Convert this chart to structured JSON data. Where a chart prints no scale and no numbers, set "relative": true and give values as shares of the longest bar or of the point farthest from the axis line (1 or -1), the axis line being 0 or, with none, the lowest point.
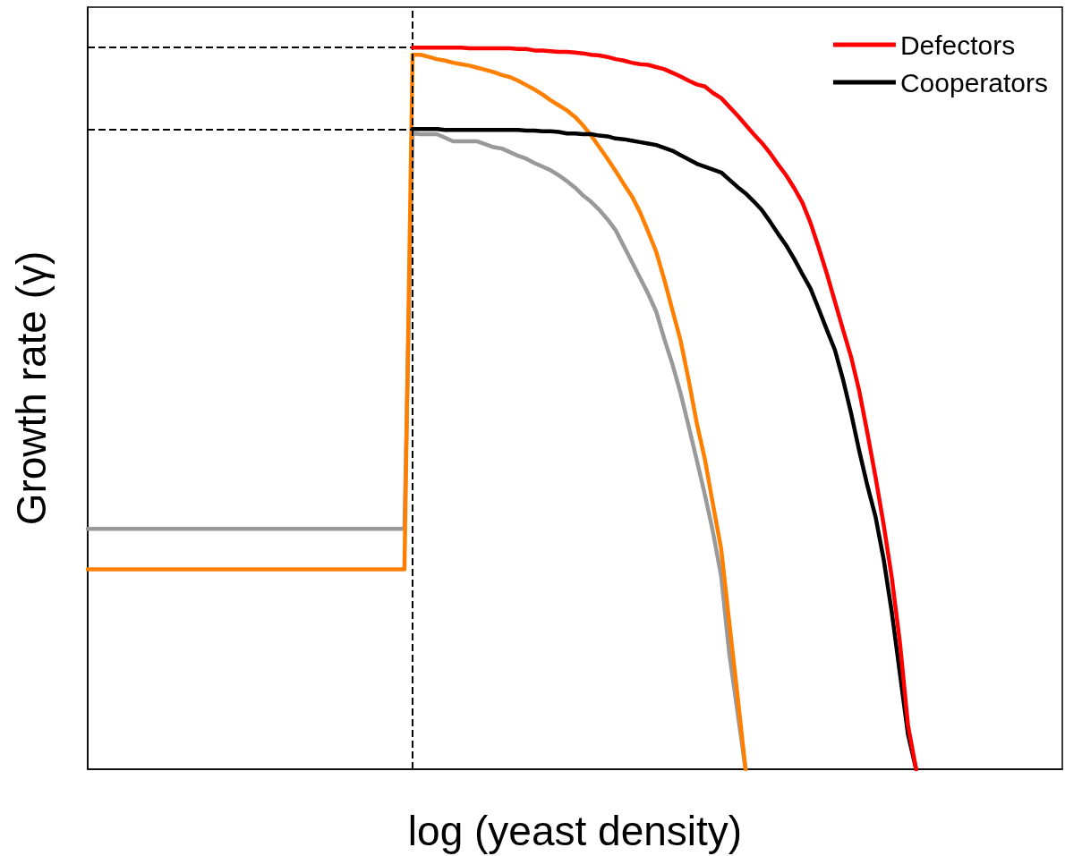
{
  "chart_data": {
    "type": "line",
    "xlabel": "log (yeast density)",
    "ylabel": "Growth rate (γ)",
    "relative": true,
    "grid": false,
    "marker": "none",
    "legend": "top right",
    "categories": [
      null,
      null,
      null,
      null,
      null,
      null,
      null,
      null,
      null,
      null,
      null,
      null,
      null,
      null,
      null,
      null,
      null,
      null,
      null,
      null,
      null,
      null,
      null,
      null,
      null,
      null,
      null,
      null,
      null,
      null,
      null,
      null,
      null,
      null,
      null,
      null,
      null,
      null,
      null,
      null,
      null,
      null,
      null,
      null,
      null,
      null,
      null,
      null,
      null,
      null,
      null,
      null,
      null,
      null,
      null,
      null,
      null,
      null,
      null,
      null,
      null,
      null,
      null,
      null,
      null,
      null,
      null,
      null,
      null,
      null,
      null,
      null,
      null,
      null,
      null,
      null,
      null,
      null,
      null,
      null,
      null,
      null,
      null,
      null,
      null,
      null,
      null,
      null,
      null,
      null,
      null,
      null,
      null,
      null,
      null,
      null,
      null,
      null,
      null,
      null,
      null,
      null,
      null,
      null,
      null,
      null,
      null,
      null,
      null,
      null,
      null,
      null,
      null,
      null,
      null,
      null,
      null,
      null,
      null,
      null,
      null
    ],
    "series": [
      {
        "color": "#999999",
        "values": [
          0.333,
          0.333,
          0.333,
          0.333,
          0.333,
          0.333,
          0.333,
          0.333,
          0.333,
          0.333,
          0.333,
          0.333,
          0.333,
          0.333,
          0.333,
          0.333,
          0.333,
          0.333,
          0.333,
          0.333,
          0.333,
          0.333,
          0.333,
          0.333,
          0.333,
          0.333,
          0.333,
          0.333,
          0.333,
          0.333,
          0.333,
          0.333,
          0.333,
          0.333,
          0.333,
          0.333,
          0.333,
          0.333,
          0.333,
          0.333,
          0.881,
          0.88,
          0.88,
          0.88,
          0.875,
          0.87,
          0.87,
          0.87,
          0.87,
          0.866,
          0.862,
          0.86,
          0.855,
          0.85,
          0.846,
          0.84,
          0.835,
          0.83,
          0.823,
          0.815,
          0.806,
          0.795,
          0.786,
          0.775,
          0.762,
          0.747,
          0.725,
          0.703,
          0.681,
          0.659,
          0.634,
          0.596,
          0.561,
          0.521,
          0.475,
          0.428,
          0.38,
          0.328,
          0.267,
          0.16,
          0.08,
          0,
          null,
          null,
          null,
          null,
          null,
          null,
          null,
          null,
          null,
          null,
          null,
          null,
          null,
          null,
          null,
          null,
          null,
          null,
          null,
          null,
          null,
          null,
          null,
          null,
          null,
          null,
          null,
          null,
          null,
          null,
          null,
          null,
          null,
          null,
          null,
          null,
          null,
          null,
          null
        ]
      },
      {
        "color": "#ff8000",
        "values": [
          0.277,
          0.277,
          0.277,
          0.277,
          0.277,
          0.277,
          0.277,
          0.277,
          0.277,
          0.277,
          0.277,
          0.277,
          0.277,
          0.277,
          0.277,
          0.277,
          0.277,
          0.277,
          0.277,
          0.277,
          0.277,
          0.277,
          0.277,
          0.277,
          0.277,
          0.277,
          0.277,
          0.277,
          0.277,
          0.277,
          0.277,
          0.277,
          0.277,
          0.277,
          0.277,
          0.277,
          0.277,
          0.277,
          0.277,
          0.277,
          0.99,
          0.99,
          0.987,
          0.984,
          0.982,
          0.979,
          0.977,
          0.975,
          0.972,
          0.969,
          0.966,
          0.962,
          0.959,
          0.954,
          0.948,
          0.942,
          0.935,
          0.927,
          0.92,
          0.913,
          0.904,
          0.892,
          0.878,
          0.862,
          0.846,
          0.829,
          0.811,
          0.794,
          0.772,
          0.745,
          0.717,
          0.678,
          0.636,
          0.594,
          0.539,
          0.479,
          0.429,
          0.366,
          0.305,
          0.203,
          0.103,
          0,
          null,
          null,
          null,
          null,
          null,
          null,
          null,
          null,
          null,
          null,
          null,
          null,
          null,
          null,
          null,
          null,
          null,
          null,
          null,
          null,
          null,
          null,
          null,
          null,
          null,
          null,
          null,
          null,
          null,
          null,
          null,
          null,
          null,
          null,
          null,
          null,
          null,
          null,
          null
        ]
      },
      {
        "name": "Cooperators",
        "color": "#000000",
        "values": [
          null,
          null,
          null,
          null,
          null,
          null,
          null,
          null,
          null,
          null,
          null,
          null,
          null,
          null,
          null,
          null,
          null,
          null,
          null,
          null,
          null,
          null,
          null,
          null,
          null,
          null,
          null,
          null,
          null,
          null,
          null,
          null,
          null,
          null,
          null,
          null,
          null,
          null,
          null,
          null,
          0.887,
          0.887,
          0.887,
          0.887,
          0.886,
          0.886,
          0.886,
          0.886,
          0.886,
          0.886,
          0.886,
          0.886,
          0.886,
          0.886,
          0.885,
          0.885,
          0.884,
          0.884,
          0.883,
          0.881,
          0.881,
          0.88,
          0.88,
          0.878,
          0.877,
          0.874,
          0.873,
          0.871,
          0.869,
          0.867,
          0.865,
          0.861,
          0.857,
          0.851,
          0.845,
          0.839,
          0.835,
          0.831,
          0.827,
          0.817,
          0.807,
          0.798,
          0.787,
          0.775,
          0.759,
          0.742,
          0.726,
          0.707,
          0.686,
          0.666,
          0.638,
          0.609,
          0.581,
          0.54,
          0.493,
          0.441,
          0.393,
          0.35,
          0.291,
          0.218,
          0.133,
          0.048,
          0,
          null,
          null,
          null,
          null,
          null,
          null,
          null,
          null,
          null,
          null,
          null,
          null,
          null,
          null,
          null,
          null,
          null,
          null
        ]
      },
      {
        "name": "Defectors",
        "color": "#ff0000",
        "values": [
          null,
          null,
          null,
          null,
          null,
          null,
          null,
          null,
          null,
          null,
          null,
          null,
          null,
          null,
          null,
          null,
          null,
          null,
          null,
          null,
          null,
          null,
          null,
          null,
          null,
          null,
          null,
          null,
          null,
          null,
          null,
          null,
          null,
          null,
          null,
          null,
          null,
          null,
          null,
          null,
          1,
          1,
          1,
          1,
          1,
          1,
          1,
          0.999,
          0.999,
          0.999,
          0.999,
          0.999,
          0.999,
          0.998,
          0.998,
          0.996,
          0.996,
          0.995,
          0.994,
          0.994,
          0.993,
          0.992,
          0.99,
          0.989,
          0.987,
          0.984,
          0.982,
          0.979,
          0.977,
          0.976,
          0.973,
          0.97,
          0.965,
          0.96,
          0.954,
          0.949,
          0.946,
          0.937,
          0.93,
          0.918,
          0.906,
          0.893,
          0.88,
          0.868,
          0.854,
          0.838,
          0.823,
          0.805,
          0.785,
          0.757,
          0.723,
          0.687,
          0.648,
          0.609,
          0.571,
          0.524,
          0.466,
          0.405,
          0.339,
          0.266,
          0.176,
          0.061,
          0,
          null,
          null,
          null,
          null,
          null,
          null,
          null,
          null,
          null,
          null,
          null,
          null,
          null,
          null,
          null,
          null,
          null,
          null
        ]
      }
    ],
    "ref_lines": [
      {
        "axis": "y",
        "value": 1,
        "line_style": "dashed"
      },
      {
        "axis": "y",
        "value": 0.887,
        "line_style": "dashed"
      }
    ]
  }
}
